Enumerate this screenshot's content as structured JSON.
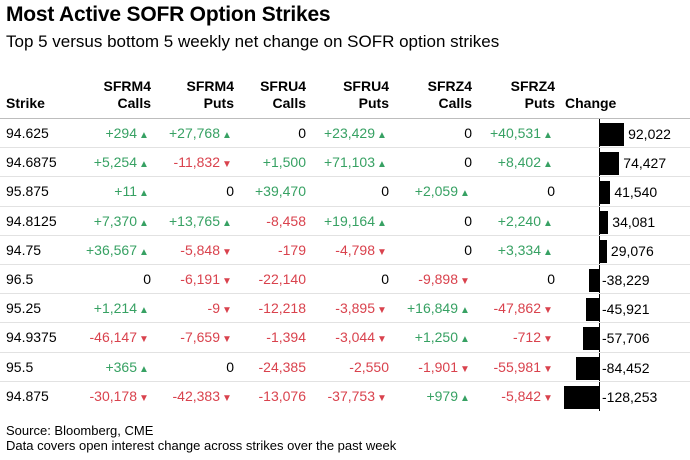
{
  "title": "Most Active SOFR Option Strikes",
  "subtitle": "Top 5 versus bottom 5 weekly net change on SOFR option strikes",
  "footer": {
    "source": "Source: Bloomberg, CME",
    "note": "Data covers open interest change across strikes over the past week"
  },
  "colors": {
    "positive": "#37a163",
    "negative": "#d9424d",
    "bar": "#000000"
  },
  "chart_data": {
    "type": "table",
    "columns": [
      {
        "line1": "",
        "line2": "Strike"
      },
      {
        "line1": "SFRM4",
        "line2": "Calls"
      },
      {
        "line1": "SFRM4",
        "line2": "Puts"
      },
      {
        "line1": "SFRU4",
        "line2": "Calls"
      },
      {
        "line1": "SFRU4",
        "line2": "Puts"
      },
      {
        "line1": "SFRZ4",
        "line2": "Calls"
      },
      {
        "line1": "SFRZ4",
        "line2": "Puts"
      },
      {
        "line1": "",
        "line2": "Change"
      }
    ],
    "rows": [
      {
        "strike": "94.625",
        "values": [
          "+294",
          "+27,768",
          "0",
          "+23,429",
          "0",
          "+40,531"
        ],
        "change": 92022,
        "change_label": "92,022"
      },
      {
        "strike": "94.6875",
        "values": [
          "+5,254",
          "-11,832",
          "+1,500",
          "+71,103",
          "0",
          "+8,402"
        ],
        "change": 74427,
        "change_label": "74,427"
      },
      {
        "strike": "95.875",
        "values": [
          "+11",
          "0",
          "+39,470",
          "0",
          "+2,059",
          "0"
        ],
        "change": 41540,
        "change_label": "41,540"
      },
      {
        "strike": "94.8125",
        "values": [
          "+7,370",
          "+13,765",
          "-8,458",
          "+19,164",
          "0",
          "+2,240"
        ],
        "change": 34081,
        "change_label": "34,081"
      },
      {
        "strike": "94.75",
        "values": [
          "+36,567",
          "-5,848",
          "-179",
          "-4,798",
          "0",
          "+3,334"
        ],
        "change": 29076,
        "change_label": "29,076"
      },
      {
        "strike": "96.5",
        "values": [
          "0",
          "-6,191",
          "-22,140",
          "0",
          "-9,898",
          "0"
        ],
        "change": -38229,
        "change_label": "-38,229"
      },
      {
        "strike": "95.25",
        "values": [
          "+1,214",
          "-9",
          "-12,218",
          "-3,895",
          "+16,849",
          "-47,862"
        ],
        "change": -45921,
        "change_label": "-45,921"
      },
      {
        "strike": "94.9375",
        "values": [
          "-46,147",
          "-7,659",
          "-1,394",
          "-3,044",
          "+1,250",
          "-712"
        ],
        "change": -57706,
        "change_label": "-57,706"
      },
      {
        "strike": "95.5",
        "values": [
          "+365",
          "0",
          "-24,385",
          "-2,550",
          "-1,901",
          "-55,981"
        ],
        "change": -84452,
        "change_label": "-84,452"
      },
      {
        "strike": "94.875",
        "values": [
          "-30,178",
          "-42,383",
          "-13,076",
          "-37,753",
          "+979",
          "-5,842"
        ],
        "change": -128253,
        "change_label": "-128,253"
      }
    ],
    "triangles": [
      [
        "up",
        "up",
        "",
        "up",
        "",
        "up"
      ],
      [
        "up",
        "down",
        "",
        "up",
        "",
        "up"
      ],
      [
        "up",
        "",
        "",
        "",
        "up",
        ""
      ],
      [
        "up",
        "up",
        "",
        "up",
        "",
        "up"
      ],
      [
        "up",
        "down",
        "",
        "down",
        "",
        "up"
      ],
      [
        "",
        "down",
        "",
        "",
        "down",
        ""
      ],
      [
        "up",
        "down",
        "",
        "down",
        "up",
        "down"
      ],
      [
        "down",
        "down",
        "",
        "down",
        "up",
        "down"
      ],
      [
        "up",
        "",
        "",
        "",
        "down",
        "down"
      ],
      [
        "down",
        "down",
        "",
        "down",
        "up",
        "down"
      ]
    ]
  }
}
